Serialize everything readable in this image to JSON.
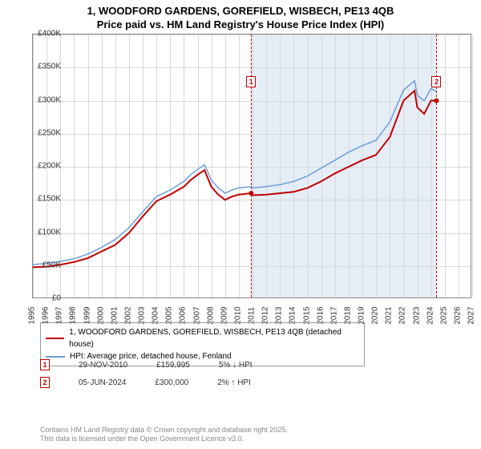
{
  "title_line1": "1, WOODFORD GARDENS, GOREFIELD, WISBECH, PE13 4QB",
  "title_line2": "Price paid vs. HM Land Registry's House Price Index (HPI)",
  "chart": {
    "type": "line",
    "xlim": [
      1995,
      2027
    ],
    "ylim": [
      0,
      400000
    ],
    "ytick_step": 50000,
    "yticks": [
      "£0",
      "£50K",
      "£100K",
      "£150K",
      "£200K",
      "£250K",
      "£300K",
      "£350K",
      "£400K"
    ],
    "xticks": [
      "1995",
      "1996",
      "1997",
      "1998",
      "1999",
      "2000",
      "2001",
      "2002",
      "2003",
      "2004",
      "2005",
      "2006",
      "2007",
      "2008",
      "2009",
      "2010",
      "2011",
      "2012",
      "2013",
      "2014",
      "2015",
      "2016",
      "2017",
      "2018",
      "2019",
      "2020",
      "2021",
      "2022",
      "2023",
      "2024",
      "2025",
      "2026",
      "2027"
    ],
    "grid_color": "#d8d8d8",
    "background_color": "#ffffff",
    "shade_start_year": 2010.9,
    "shade_end_year": 2024.4,
    "shade_color": "#e5eef7",
    "series": [
      {
        "name": "price_paid",
        "label": "1, WOODFORD GARDENS, GOREFIELD, WISBECH, PE13 4QB (detached house)",
        "color": "#c00000",
        "width": 2,
        "years": [
          1995,
          1996,
          1997,
          1998,
          1999,
          2000,
          2001,
          2002,
          2003,
          2004,
          2005,
          2006,
          2006.5,
          2007,
          2007.5,
          2008,
          2008.5,
          2009,
          2009.5,
          2010,
          2010.9,
          2011,
          2012,
          2013,
          2014,
          2015,
          2016,
          2017,
          2018,
          2019,
          2020,
          2021,
          2022,
          2022.8,
          2023,
          2023.5,
          2024,
          2024.4
        ],
        "values": [
          48000,
          49000,
          52000,
          56000,
          62000,
          72000,
          82000,
          100000,
          125000,
          148000,
          158000,
          170000,
          180000,
          188000,
          195000,
          170000,
          158000,
          150000,
          155000,
          158000,
          159995,
          157000,
          158000,
          160000,
          162000,
          168000,
          178000,
          190000,
          200000,
          210000,
          218000,
          245000,
          300000,
          315000,
          290000,
          280000,
          300000,
          300000
        ]
      },
      {
        "name": "hpi",
        "label": "HPI: Average price, detached house, Fenland",
        "color": "#6d9ed4",
        "width": 1.5,
        "years": [
          1995,
          1996,
          1997,
          1998,
          1999,
          2000,
          2001,
          2002,
          2003,
          2004,
          2005,
          2006,
          2006.5,
          2007,
          2007.5,
          2008,
          2008.5,
          2009,
          2009.5,
          2010,
          2010.9,
          2011,
          2012,
          2013,
          2014,
          2015,
          2016,
          2017,
          2018,
          2019,
          2020,
          2021,
          2022,
          2022.8,
          2023,
          2023.5,
          2024,
          2024.4
        ],
        "values": [
          52000,
          54000,
          57000,
          61000,
          68000,
          78000,
          90000,
          108000,
          132000,
          155000,
          165000,
          178000,
          188000,
          196000,
          203000,
          180000,
          168000,
          160000,
          165000,
          168000,
          170000,
          168000,
          170000,
          173000,
          178000,
          186000,
          198000,
          210000,
          222000,
          232000,
          240000,
          268000,
          316000,
          330000,
          308000,
          300000,
          318000,
          314000
        ]
      }
    ],
    "markers": [
      {
        "n": "1",
        "year": 2010.9,
        "value": 159995,
        "color": "#c00000"
      },
      {
        "n": "2",
        "year": 2024.4,
        "value": 300000,
        "color": "#c00000"
      }
    ]
  },
  "legend": {
    "row1_label": "1, WOODFORD GARDENS, GOREFIELD, WISBECH, PE13 4QB (detached house)",
    "row1_color": "#c00000",
    "row2_label": "HPI: Average price, detached house, Fenland",
    "row2_color": "#6d9ed4"
  },
  "sales": [
    {
      "n": "1",
      "date": "29-NOV-2010",
      "price": "£159,995",
      "delta": "5% ↓ HPI",
      "color": "#c00000"
    },
    {
      "n": "2",
      "date": "05-JUN-2024",
      "price": "£300,000",
      "delta": "2% ↑ HPI",
      "color": "#c00000"
    }
  ],
  "attribution_line1": "Contains HM Land Registry data © Crown copyright and database right 2025.",
  "attribution_line2": "This data is licensed under the Open Government Licence v3.0."
}
